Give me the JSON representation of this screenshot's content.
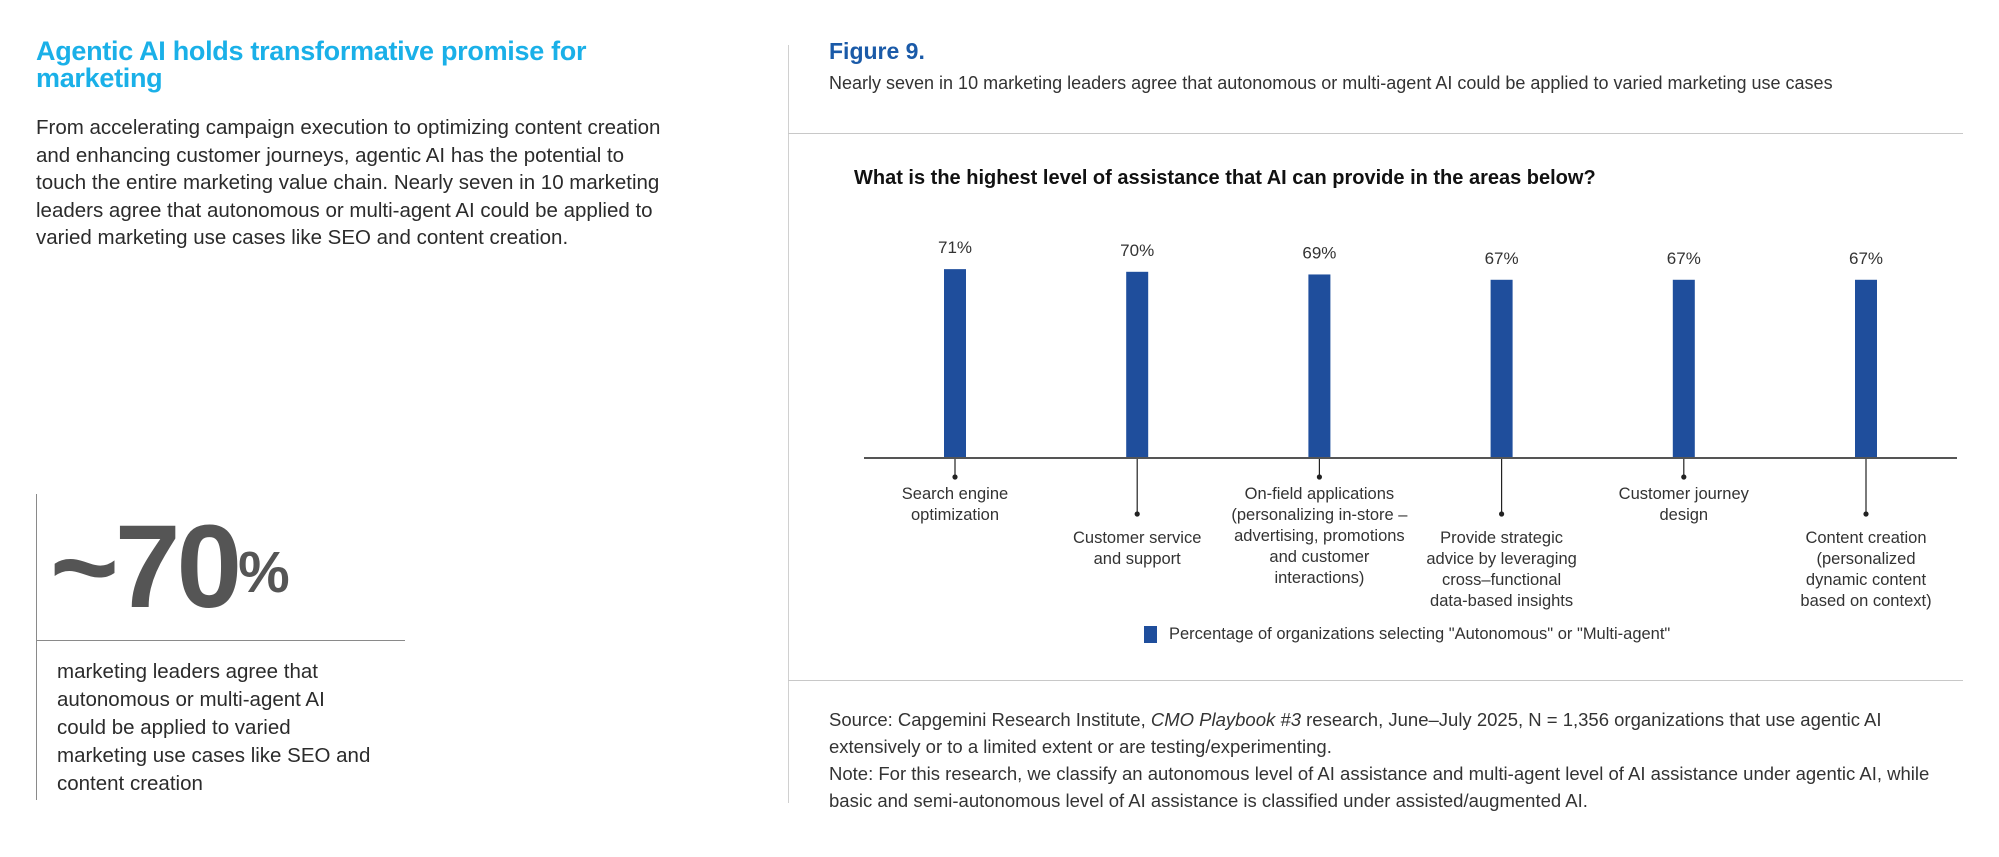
{
  "left": {
    "heading": "Agentic AI holds transformative promise for marketing",
    "intro": "From accelerating campaign execution to optimizing content creation and enhancing customer journeys, agentic AI has the potential to touch the entire marketing value chain. Nearly seven in 10 marketing leaders agree that autonomous or multi-agent AI could be applied to varied marketing use cases like SEO and content creation.",
    "stat_value": "~70",
    "stat_unit": "%",
    "stat_caption": "marketing leaders agree that autonomous or multi-agent AI could be applied to varied marketing use cases like SEO and content creation"
  },
  "figure": {
    "title": "Figure 9.",
    "subtitle": "Nearly seven in 10 marketing leaders agree that autonomous or multi-agent AI could be applied to varied marketing use cases",
    "source_prefix": "Source: Capgemini Research Institute, ",
    "source_italic": "CMO Playbook #3",
    "source_suffix": " research, June–July 2025, N = 1,356 organizations that use agentic AI extensively or to a limited extent or are testing/experimenting.",
    "note": "Note: For this research, we classify an autonomous level of AI assistance and multi-agent level of AI assistance under agentic AI, while basic and semi-autonomous level of AI assistance is classified under assisted/augmented AI."
  },
  "chart_data": {
    "type": "bar",
    "title": "What is the highest level of assistance that AI can provide in the areas below?",
    "categories": [
      "Search engine optimization",
      "Customer service and support",
      "On-field applications (personalizing in-store – advertising, promotions and customer interactions)",
      "Provide strategic advice by leveraging cross–functional data-based insights",
      "Customer journey design",
      "Content creation (personalized dynamic content based on context)"
    ],
    "values": [
      71,
      70,
      69,
      67,
      67,
      67
    ],
    "data_labels": [
      "71%",
      "70%",
      "69%",
      "67%",
      "67%",
      "67%"
    ],
    "series": [
      {
        "name": "Percentage of organizations selecting \"Autonomous\" or \"Multi-agent\"",
        "values": [
          71,
          70,
          69,
          67,
          67,
          67
        ]
      }
    ],
    "legend": "Percentage of organizations selecting \"Autonomous\" or \"Multi-agent\"",
    "legend_position": "bottom",
    "xlabel": "",
    "ylabel": "",
    "ylim": [
      0,
      100
    ],
    "grid": false,
    "bar_color": "#1f4e9c"
  }
}
